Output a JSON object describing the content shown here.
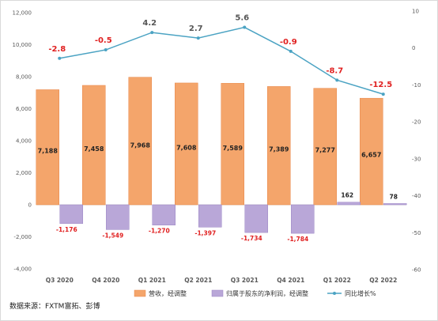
{
  "chart_data": {
    "type": "bar",
    "categories": [
      "Q3 2020",
      "Q4 2020",
      "Q1 2021",
      "Q2 2021",
      "Q3 2021",
      "Q4 2021",
      "Q1 2022",
      "Q2 2022"
    ],
    "series": [
      {
        "name": "营收，经调整",
        "type": "bar",
        "axis": "left",
        "color": "#f4a56b",
        "values": [
          7188,
          7458,
          7968,
          7608,
          7589,
          7389,
          7277,
          6657
        ],
        "labels": [
          "7,188",
          "7,458",
          "7,968",
          "7,608",
          "7,589",
          "7,389",
          "7,277",
          "6,657"
        ]
      },
      {
        "name": "归属于股东的净利润，经调整",
        "type": "bar",
        "axis": "left",
        "color": "#b9a7d8",
        "values": [
          -1176,
          -1549,
          -1270,
          -1397,
          -1734,
          -1784,
          162,
          78
        ],
        "labels": [
          "-1,176",
          "-1,549",
          "-1,270",
          "-1,397",
          "-1,734",
          "-1,784",
          "162",
          "78"
        ]
      },
      {
        "name": "同比增长%",
        "type": "line",
        "axis": "right",
        "color": "#4ba3c3",
        "values": [
          -2.8,
          -0.5,
          4.2,
          2.7,
          5.6,
          -0.9,
          -8.7,
          -12.5
        ],
        "labels": [
          "-2.8",
          "-0.5",
          "4.2",
          "2.7",
          "5.6",
          "-0.9",
          "-8.7",
          "-12.5"
        ]
      }
    ],
    "y_left": {
      "range": [
        -4000,
        12000
      ],
      "ticks": [
        -4000,
        -2000,
        0,
        2000,
        4000,
        6000,
        8000,
        10000,
        12000
      ],
      "tick_labels": [
        "-4,000",
        "-2,000",
        "0",
        "2,000",
        "4,000",
        "6,000",
        "8,000",
        "10,000",
        "12,000"
      ]
    },
    "y_right": {
      "range": [
        -60,
        10
      ],
      "ticks": [
        -60,
        -50,
        -40,
        -30,
        -20,
        -10,
        0,
        10
      ],
      "tick_labels": [
        "-60",
        "-50",
        "-40",
        "-30",
        "-20",
        "-10",
        "0",
        "10"
      ]
    },
    "legend_position": "bottom",
    "grid": false,
    "label_colors": {
      "negative": "#e02020",
      "positive": "#555555"
    }
  },
  "source_note": "数据来源：FXTM富拓、彭博"
}
